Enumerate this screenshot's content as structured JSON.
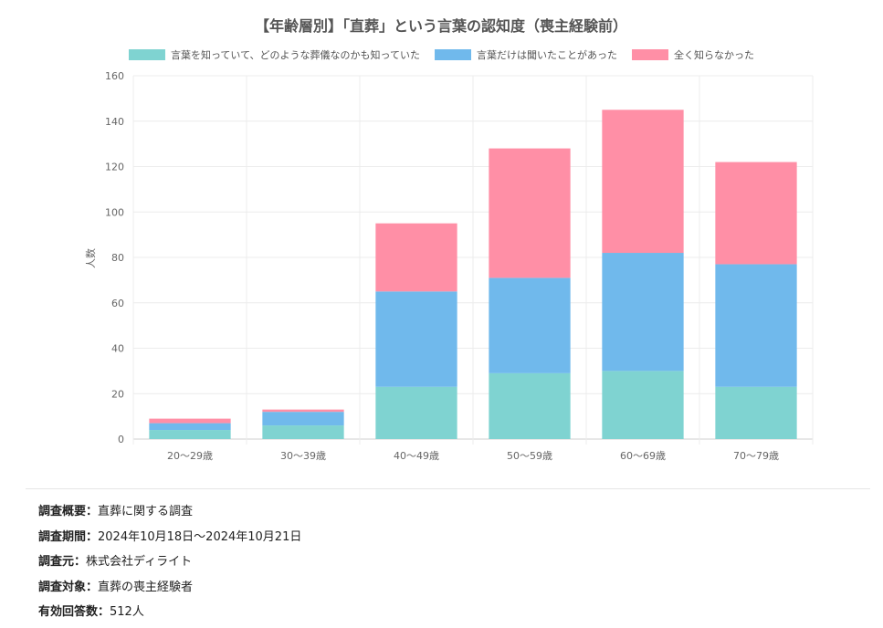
{
  "chart_data": {
    "type": "bar",
    "stacked": true,
    "title": "【年齢層別】「直葬」という言葉の認知度（喪主経験前）",
    "ylabel": "人数",
    "xlabel": "",
    "ylim": [
      0,
      160
    ],
    "yticks": [
      0,
      20,
      40,
      60,
      80,
      100,
      120,
      140,
      160
    ],
    "grid": true,
    "legend_position": "top",
    "categories": [
      "20〜29歳",
      "30〜39歳",
      "40〜49歳",
      "50〜59歳",
      "60〜69歳",
      "70〜79歳"
    ],
    "series": [
      {
        "name": "言葉を知っていて、どのような葬儀なのかも知っていた",
        "color": "#7fd3d1",
        "values": [
          4,
          6,
          23,
          29,
          30,
          23
        ]
      },
      {
        "name": "言葉だけは聞いたことがあった",
        "color": "#70b9ec",
        "values": [
          3,
          6,
          42,
          42,
          52,
          54
        ]
      },
      {
        "name": "全く知らなかった",
        "color": "#ff8fa6",
        "values": [
          2,
          1,
          30,
          57,
          63,
          45
        ]
      }
    ]
  },
  "survey": {
    "rows": [
      {
        "key": "調査概要：",
        "value": "直葬に関する調査"
      },
      {
        "key": "調査期間：",
        "value": "2024年10月18日〜2024年10月21日"
      },
      {
        "key": "調査元：",
        "value": "株式会社ディライト"
      },
      {
        "key": "調査対象：",
        "value": "直葬の喪主経験者"
      },
      {
        "key": "有効回答数：",
        "value": "512人"
      }
    ]
  }
}
